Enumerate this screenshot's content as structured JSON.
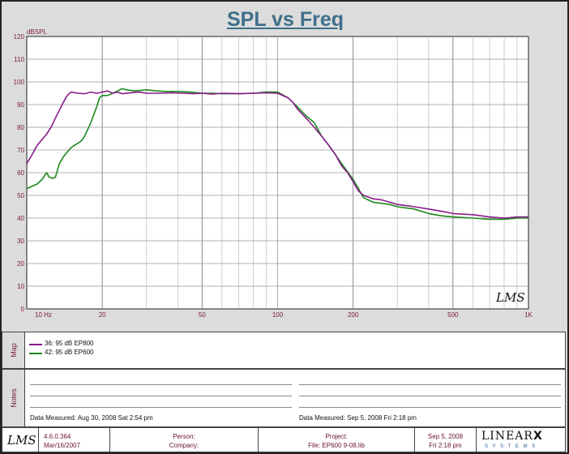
{
  "chart_data": {
    "type": "line",
    "title": "SPL vs Freq",
    "ylabel": "dBSPL",
    "xscale": "log",
    "xlim": [
      10,
      1000
    ],
    "ylim": [
      0,
      120
    ],
    "x_tick_labels": [
      {
        "x": 10,
        "label": "10  Hz"
      },
      {
        "x": 20,
        "label": "20"
      },
      {
        "x": 50,
        "label": "50"
      },
      {
        "x": 100,
        "label": "100"
      },
      {
        "x": 200,
        "label": "200"
      },
      {
        "x": 500,
        "label": "500"
      },
      {
        "x": 1000,
        "label": "1K"
      }
    ],
    "y_ticks": [
      0,
      10,
      20,
      30,
      40,
      50,
      60,
      70,
      80,
      90,
      100,
      110,
      120
    ],
    "grid": true,
    "series": [
      {
        "name": "36: 95 dB EP800",
        "color": "#8a1a8a",
        "points": [
          [
            10,
            64
          ],
          [
            10.5,
            68
          ],
          [
            11,
            72
          ],
          [
            12,
            77
          ],
          [
            12.5,
            80
          ],
          [
            13,
            84
          ],
          [
            14,
            91
          ],
          [
            14.5,
            94
          ],
          [
            15,
            95.5
          ],
          [
            16,
            95
          ],
          [
            17,
            94.8
          ],
          [
            18,
            95.5
          ],
          [
            19,
            95
          ],
          [
            20,
            95.5
          ],
          [
            21,
            96
          ],
          [
            22,
            95
          ],
          [
            23,
            95.5
          ],
          [
            24,
            94.8
          ],
          [
            26,
            95.2
          ],
          [
            28,
            95.5
          ],
          [
            30,
            95
          ],
          [
            34,
            95
          ],
          [
            38,
            95.2
          ],
          [
            42,
            95
          ],
          [
            46,
            94.8
          ],
          [
            50,
            95
          ],
          [
            55,
            94.6
          ],
          [
            60,
            95
          ],
          [
            70,
            94.8
          ],
          [
            80,
            95
          ],
          [
            90,
            95.2
          ],
          [
            100,
            95
          ],
          [
            110,
            93
          ],
          [
            115,
            91
          ],
          [
            120,
            88
          ],
          [
            130,
            84
          ],
          [
            140,
            80
          ],
          [
            150,
            76
          ],
          [
            160,
            72
          ],
          [
            170,
            68
          ],
          [
            180,
            63
          ],
          [
            190,
            60
          ],
          [
            200,
            56
          ],
          [
            210,
            52
          ],
          [
            220,
            50
          ],
          [
            240,
            48.5
          ],
          [
            260,
            48
          ],
          [
            280,
            47
          ],
          [
            300,
            46
          ],
          [
            350,
            45
          ],
          [
            400,
            44
          ],
          [
            450,
            43
          ],
          [
            500,
            42
          ],
          [
            600,
            41.5
          ],
          [
            700,
            40.5
          ],
          [
            800,
            40
          ],
          [
            900,
            40.5
          ],
          [
            1000,
            40.5
          ]
        ]
      },
      {
        "name": "42: 95 dB EP600",
        "color": "#1a8a1a",
        "points": [
          [
            10,
            53
          ],
          [
            11,
            55
          ],
          [
            11.5,
            57
          ],
          [
            12,
            60
          ],
          [
            12.3,
            58
          ],
          [
            12.7,
            57.5
          ],
          [
            13,
            58
          ],
          [
            13.5,
            64
          ],
          [
            14,
            67
          ],
          [
            15,
            71
          ],
          [
            16,
            73
          ],
          [
            16.5,
            74
          ],
          [
            17,
            76
          ],
          [
            18,
            82
          ],
          [
            19,
            89
          ],
          [
            19.5,
            93
          ],
          [
            20,
            94
          ],
          [
            21,
            94
          ],
          [
            22,
            95
          ],
          [
            23,
            96
          ],
          [
            24,
            97
          ],
          [
            25,
            96.5
          ],
          [
            27,
            96
          ],
          [
            30,
            96.5
          ],
          [
            33,
            96
          ],
          [
            36,
            95.8
          ],
          [
            40,
            95.8
          ],
          [
            45,
            95.5
          ],
          [
            50,
            95
          ],
          [
            55,
            95
          ],
          [
            60,
            94.8
          ],
          [
            70,
            94.8
          ],
          [
            80,
            95
          ],
          [
            90,
            95.5
          ],
          [
            100,
            95.5
          ],
          [
            110,
            93
          ],
          [
            120,
            89
          ],
          [
            130,
            85
          ],
          [
            140,
            82
          ],
          [
            150,
            76
          ],
          [
            160,
            72
          ],
          [
            180,
            64
          ],
          [
            200,
            57
          ],
          [
            210,
            53
          ],
          [
            220,
            49
          ],
          [
            240,
            47
          ],
          [
            260,
            46.5
          ],
          [
            280,
            46
          ],
          [
            300,
            45
          ],
          [
            350,
            44
          ],
          [
            400,
            42
          ],
          [
            450,
            41
          ],
          [
            500,
            40.5
          ],
          [
            600,
            40
          ],
          [
            700,
            39.5
          ],
          [
            800,
            39.5
          ],
          [
            900,
            40
          ],
          [
            1000,
            40
          ]
        ]
      }
    ]
  },
  "logo_text": "LMS",
  "legend_panel": {
    "tab_label": "Map",
    "items": [
      {
        "label": "36: 95 dB EP800",
        "color": "#8a1a8a"
      },
      {
        "label": "42: 95 dB EP600",
        "color": "#1a8a1a"
      }
    ]
  },
  "notes_panel": {
    "tab_label": "Notes",
    "date_left": "Data Measured:  Aug 30, 2008  Sat  2:54 pm",
    "date_right": "Data Measured:  Sep  5, 2008  Fri  2:18 pm"
  },
  "footer": {
    "logo_text": "LMS",
    "version": "4.6.0.364",
    "version_date": "Mar/16/2007",
    "person_label": "Person:",
    "company_label": "Company:",
    "project_label": "Project:",
    "file_label": "File: EP600 9-08.lib",
    "date": "Sep  5, 2008",
    "time": "Fri  2:18 pm",
    "brand_main": "LINEAR",
    "brand_x": "X",
    "brand_sub": "S Y S T E M S"
  }
}
